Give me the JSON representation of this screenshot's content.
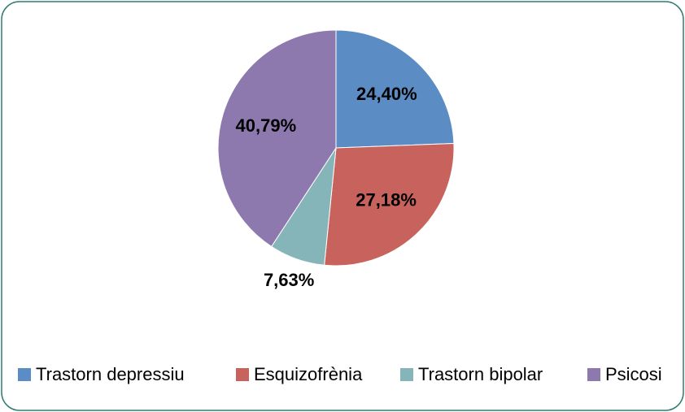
{
  "chart_data": {
    "type": "pie",
    "categories": [
      "Trastorn depressiu",
      "Esquizofrènia",
      "Trastorn bipolar",
      "Psicosi"
    ],
    "values": [
      24.4,
      27.18,
      7.63,
      40.79
    ],
    "value_labels": [
      "24,40%",
      "27,18%",
      "7,63%",
      "40,79%"
    ],
    "colors": [
      "#5b8cc4",
      "#c8625c",
      "#86b5b9",
      "#8e79ae"
    ],
    "legend": "bottom"
  }
}
